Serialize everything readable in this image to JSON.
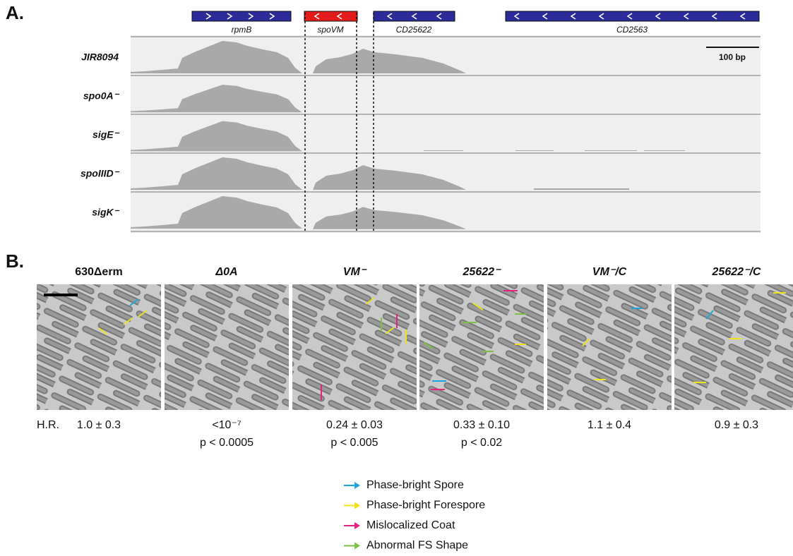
{
  "panel_a": {
    "label": "A.",
    "genes": [
      {
        "label": "rpmB"
      },
      {
        "label": "spoVM"
      },
      {
        "label": "CD25622"
      },
      {
        "label": "CD2563"
      }
    ],
    "tracks": [
      {
        "label": "JIR8094"
      },
      {
        "label": "spo0A⁻"
      },
      {
        "label": "sigE⁻"
      },
      {
        "label": "spoIIID⁻"
      },
      {
        "label": "sigK⁻"
      }
    ],
    "scale_bar": "100 bp"
  },
  "panel_b": {
    "label": "B.",
    "strains": [
      {
        "name": "630Δerm",
        "hr": "1.0 ± 0.3"
      },
      {
        "name": "Δ0A",
        "hr": "<10⁻⁷",
        "p": "p < 0.0005"
      },
      {
        "name": "VM⁻",
        "hr": "0.24 ± 0.03",
        "p": "p < 0.005"
      },
      {
        "name": "25622⁻",
        "hr": "0.33 ± 0.10",
        "p": "p < 0.02"
      },
      {
        "name": "VM⁻/C",
        "hr": "1.1 ± 0.4"
      },
      {
        "name": "25622⁻/C",
        "hr": "0.9 ± 0.3"
      }
    ],
    "hr_label": "H.R.",
    "legend": [
      {
        "label": "Phase-bright Spore",
        "color": "#1ca3e0"
      },
      {
        "label": "Phase-bright Forespore",
        "color": "#eee21a"
      },
      {
        "label": "Mislocalized Coat",
        "color": "#e8207f"
      },
      {
        "label": "Abnormal FS Shape",
        "color": "#7bc043"
      }
    ]
  }
}
